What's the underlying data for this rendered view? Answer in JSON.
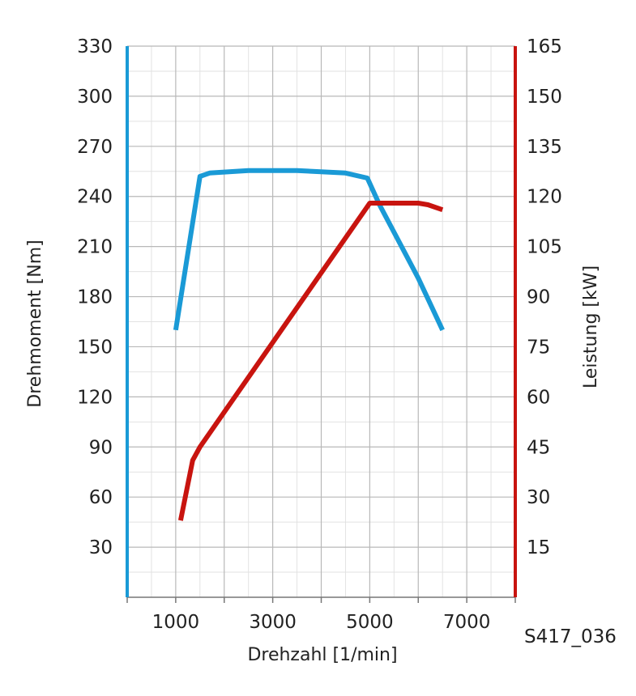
{
  "chart_data": {
    "type": "line",
    "x_axis": {
      "label": "Drehzahl [1/min]",
      "range": [
        0,
        8000
      ],
      "tick_labels": [
        1000,
        3000,
        5000,
        7000
      ],
      "minor_step": 500,
      "major_step": 1000
    },
    "y_left": {
      "label": "Drehmoment [Nm]",
      "range": [
        0,
        330
      ],
      "tick_labels": [
        30,
        60,
        90,
        120,
        150,
        180,
        210,
        240,
        270,
        300,
        330
      ],
      "color": "#1a9ad6"
    },
    "y_right": {
      "label": "Leistung [kW]",
      "range": [
        0,
        165
      ],
      "tick_labels": [
        15,
        30,
        45,
        60,
        75,
        90,
        105,
        120,
        135,
        150,
        165
      ],
      "color": "#c8140f"
    },
    "series": [
      {
        "axis": "left",
        "color": "#1a9ad6",
        "points": [
          [
            1000,
            160
          ],
          [
            1500,
            252
          ],
          [
            1700,
            254
          ],
          [
            2500,
            255.5
          ],
          [
            3500,
            255.5
          ],
          [
            4500,
            254
          ],
          [
            4950,
            251
          ],
          [
            5200,
            235
          ],
          [
            6000,
            191
          ],
          [
            6500,
            160
          ]
        ]
      },
      {
        "axis": "right",
        "color": "#c8140f",
        "points": [
          [
            1100,
            23
          ],
          [
            1350,
            41
          ],
          [
            1500,
            45
          ],
          [
            5000,
            118
          ],
          [
            6000,
            118
          ],
          [
            6200,
            117.5
          ],
          [
            6500,
            116
          ]
        ]
      }
    ],
    "grid": true
  },
  "figure_code": "S417_036"
}
